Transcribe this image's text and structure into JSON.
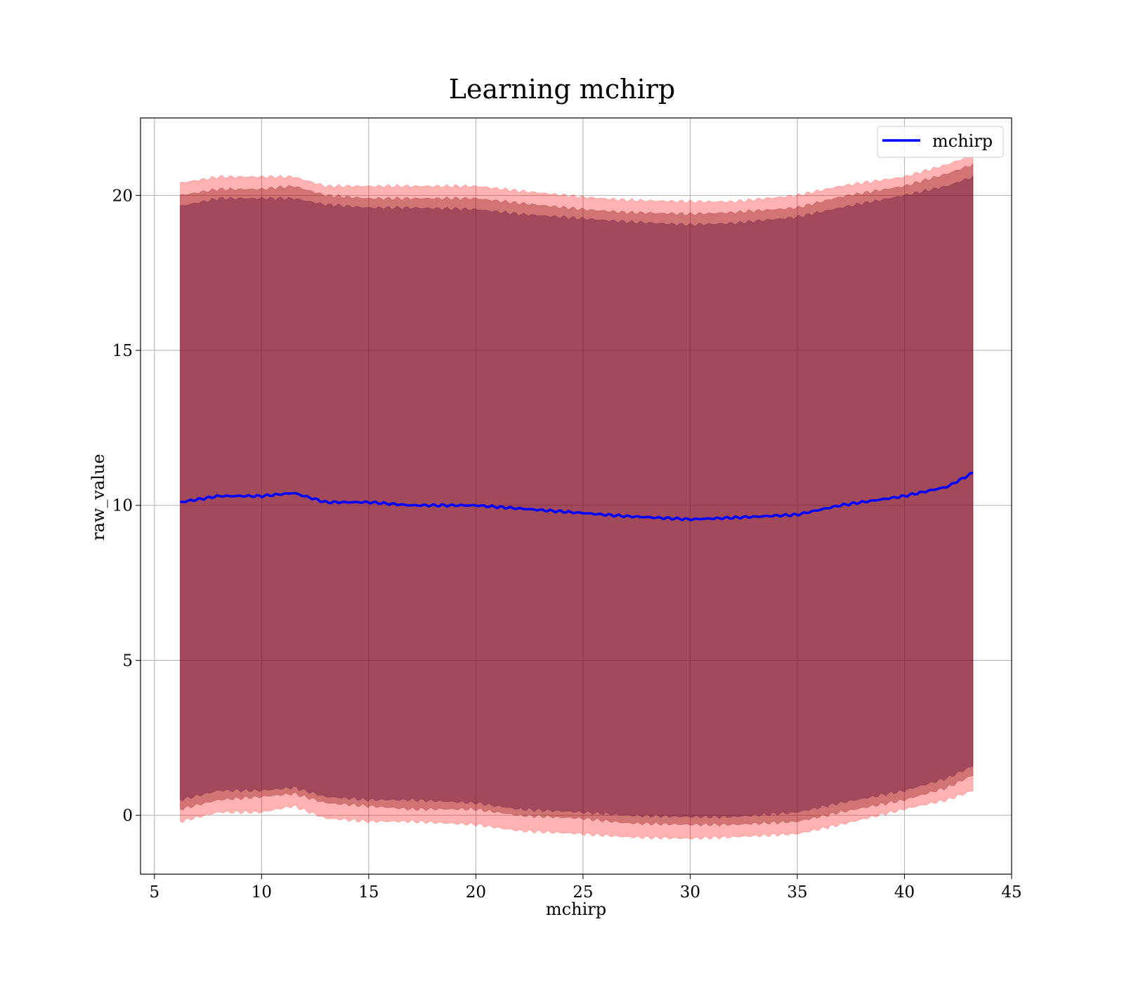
{
  "chart_data": {
    "type": "area",
    "title": "Learning mchirp",
    "xlabel": "mchirp",
    "ylabel": "raw_value",
    "xlim": [
      4.35,
      45
    ],
    "ylim": [
      -1.9,
      22.5
    ],
    "xticks": [
      5,
      10,
      15,
      20,
      25,
      30,
      35,
      40,
      45
    ],
    "yticks": [
      0,
      5,
      10,
      15,
      20
    ],
    "grid": true,
    "legend": {
      "position": "top-right",
      "entries": [
        "mchirp"
      ]
    },
    "x": [
      6.2,
      8,
      10,
      11.5,
      13,
      15,
      17,
      20,
      22,
      25,
      27,
      30,
      32,
      35,
      37,
      40,
      42,
      43.2
    ],
    "series": [
      {
        "name": "mchirp",
        "role": "line",
        "color": "#0000ff",
        "values": [
          10.1,
          10.3,
          10.3,
          10.4,
          10.1,
          10.1,
          10.0,
          10.0,
          9.9,
          9.75,
          9.65,
          9.55,
          9.6,
          9.7,
          10.0,
          10.3,
          10.6,
          11.05
        ]
      },
      {
        "role": "band",
        "color": "#ff0000",
        "opacity": 0.3,
        "lower": [
          -0.2,
          0.1,
          0.1,
          0.3,
          -0.1,
          -0.2,
          -0.2,
          -0.3,
          -0.5,
          -0.6,
          -0.7,
          -0.75,
          -0.7,
          -0.6,
          -0.3,
          0.2,
          0.5,
          0.8
        ],
        "upper": [
          20.4,
          20.6,
          20.6,
          20.6,
          20.3,
          20.3,
          20.3,
          20.3,
          20.15,
          19.95,
          19.85,
          19.8,
          19.8,
          20.0,
          20.3,
          20.6,
          21.0,
          21.3
        ]
      },
      {
        "role": "band",
        "color": "#800000",
        "opacity": 0.35,
        "lower": [
          0.2,
          0.5,
          0.6,
          0.7,
          0.4,
          0.3,
          0.2,
          0.2,
          0.0,
          -0.1,
          -0.25,
          -0.3,
          -0.3,
          -0.2,
          0.1,
          0.5,
          0.9,
          1.3
        ],
        "upper": [
          20.0,
          20.2,
          20.2,
          20.3,
          20.0,
          19.9,
          19.9,
          19.9,
          19.75,
          19.55,
          19.45,
          19.4,
          19.45,
          19.6,
          19.95,
          20.3,
          20.7,
          21.0
        ]
      },
      {
        "role": "band",
        "color": "#5a0a3a",
        "opacity": 0.4,
        "lower": [
          0.5,
          0.8,
          0.8,
          0.9,
          0.6,
          0.5,
          0.5,
          0.4,
          0.2,
          0.1,
          0.0,
          -0.05,
          -0.05,
          0.1,
          0.4,
          0.8,
          1.2,
          1.6
        ],
        "upper": [
          19.65,
          19.9,
          19.9,
          19.9,
          19.7,
          19.6,
          19.6,
          19.55,
          19.4,
          19.25,
          19.15,
          19.05,
          19.1,
          19.3,
          19.6,
          20.0,
          20.3,
          20.6
        ]
      }
    ]
  }
}
